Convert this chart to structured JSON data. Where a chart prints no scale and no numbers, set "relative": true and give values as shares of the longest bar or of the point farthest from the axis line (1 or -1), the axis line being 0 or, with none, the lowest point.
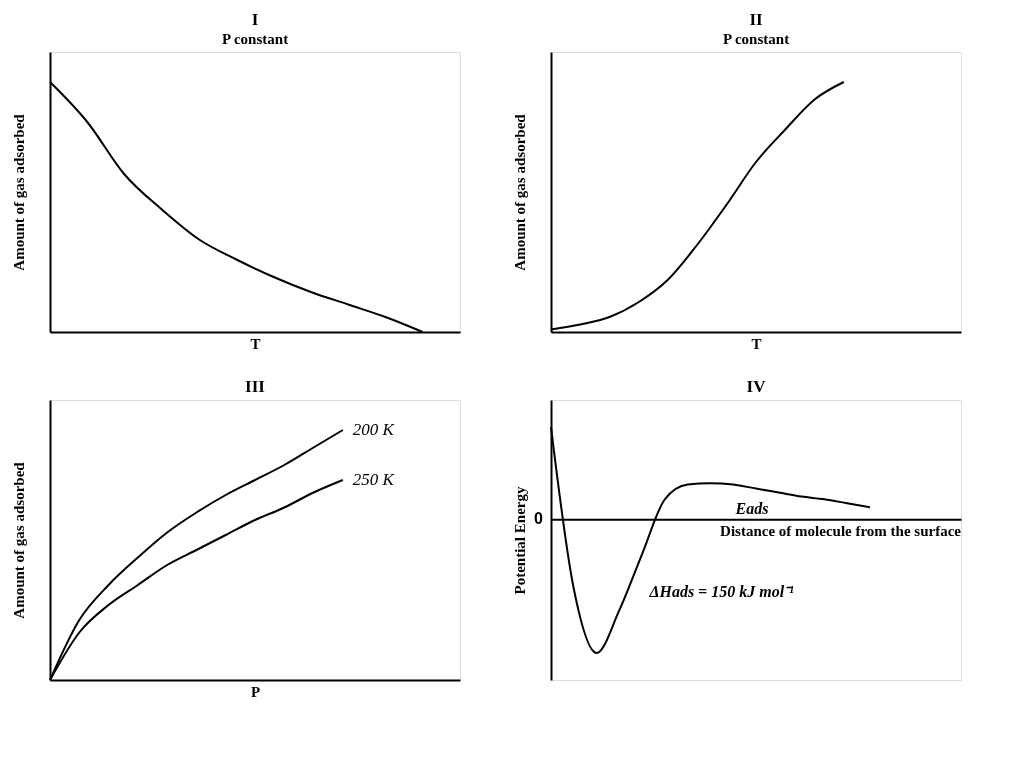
{
  "chart_data": [
    {
      "type": "line",
      "title": "I",
      "subtitle": "P constant",
      "xlabel": "T",
      "ylabel": "Amount of gas adsorbed",
      "relative": true,
      "categories": [
        null,
        null,
        null,
        null,
        null,
        null,
        null,
        null,
        null,
        null,
        null,
        null
      ],
      "series": [
        {
          "color": "#000000",
          "values": [
            1,
            0.84,
            0.63,
            0.49,
            0.37,
            0.29,
            0.22,
            0.16,
            0.11,
            0.06,
            0.0,
            null
          ]
        }
      ]
    },
    {
      "type": "line",
      "title": "II",
      "subtitle": "P constant",
      "xlabel": "T",
      "ylabel": "Amount of gas adsorbed",
      "relative": true,
      "categories": [
        null,
        null,
        null,
        null,
        null,
        null,
        null,
        null,
        null,
        null,
        null,
        null,
        null,
        null,
        null
      ],
      "series": [
        {
          "color": "#000000",
          "values": [
            0.01,
            0.03,
            0.06,
            0.12,
            0.21,
            0.35,
            0.51,
            0.68,
            0.81,
            0.93,
            1,
            null,
            null,
            null,
            null
          ]
        }
      ]
    },
    {
      "type": "line",
      "title": "III",
      "xlabel": "P",
      "ylabel": "Amount of gas adsorbed",
      "relative": true,
      "categories": [
        null,
        null,
        null,
        null,
        null,
        null,
        null,
        null,
        null,
        null,
        null,
        null,
        null,
        null,
        null
      ],
      "series": [
        {
          "name": "200 K",
          "color": "#000000",
          "values": [
            0,
            0.24,
            0.38,
            0.49,
            0.59,
            0.67,
            0.74,
            0.8,
            0.86,
            0.93,
            1,
            null,
            null,
            null,
            null
          ]
        },
        {
          "name": "250 K",
          "color": "#000000",
          "values": [
            0,
            0.19,
            0.3,
            0.38,
            0.46,
            0.52,
            0.58,
            0.64,
            0.69,
            0.75,
            0.8,
            null,
            null,
            null,
            null
          ]
        }
      ]
    },
    {
      "type": "line",
      "title": "IV",
      "xlabel": "Distance of molecule from the surface",
      "ylabel": "Potential Energy",
      "relative": true,
      "categories": [
        null,
        null,
        null,
        null,
        null,
        null,
        null,
        null,
        null,
        null,
        null,
        null,
        null,
        null,
        null,
        null,
        null,
        null,
        null
      ],
      "series": [
        {
          "color": "#000000",
          "values": [
            0.69,
            -0.52,
            -1,
            -0.68,
            -0.26,
            0.15,
            0.26,
            0.27,
            0.26,
            0.23,
            0.2,
            0.17,
            0.15,
            0.12,
            0.09,
            null,
            null,
            null,
            null
          ]
        }
      ],
      "annotations": [
        "0",
        "Eads",
        "ΔHads = 150 kJ mol⁻¹"
      ]
    }
  ]
}
